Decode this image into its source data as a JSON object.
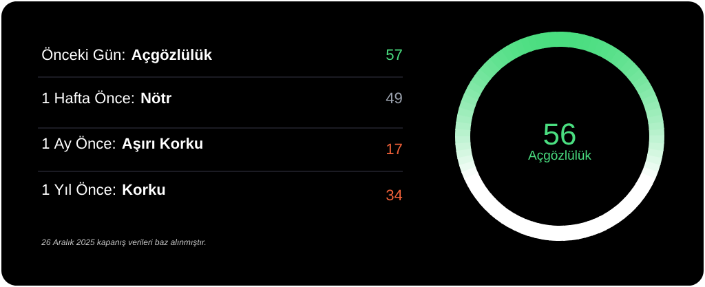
{
  "chart_data": {
    "type": "other",
    "title": "56",
    "subtitle": "Açgözlülük",
    "categories": [
      "Önceki Gün: **Açgözlülük**",
      "1 Hafta Önce: **Nötr**",
      "1 Ay Önce: **Aşırı Korku**",
      "1 Yıl Önce: **Korku**"
    ],
    "values": [
      57,
      49,
      17,
      34
    ],
    "data_labels": true,
    "colors": [
      "#4ade80",
      "#9ca3af",
      "#f4623a",
      "#f4623a"
    ],
    "annotations": [
      "26 Aralık 2025 kapanış verileri baz alınmıştır."
    ]
  }
}
